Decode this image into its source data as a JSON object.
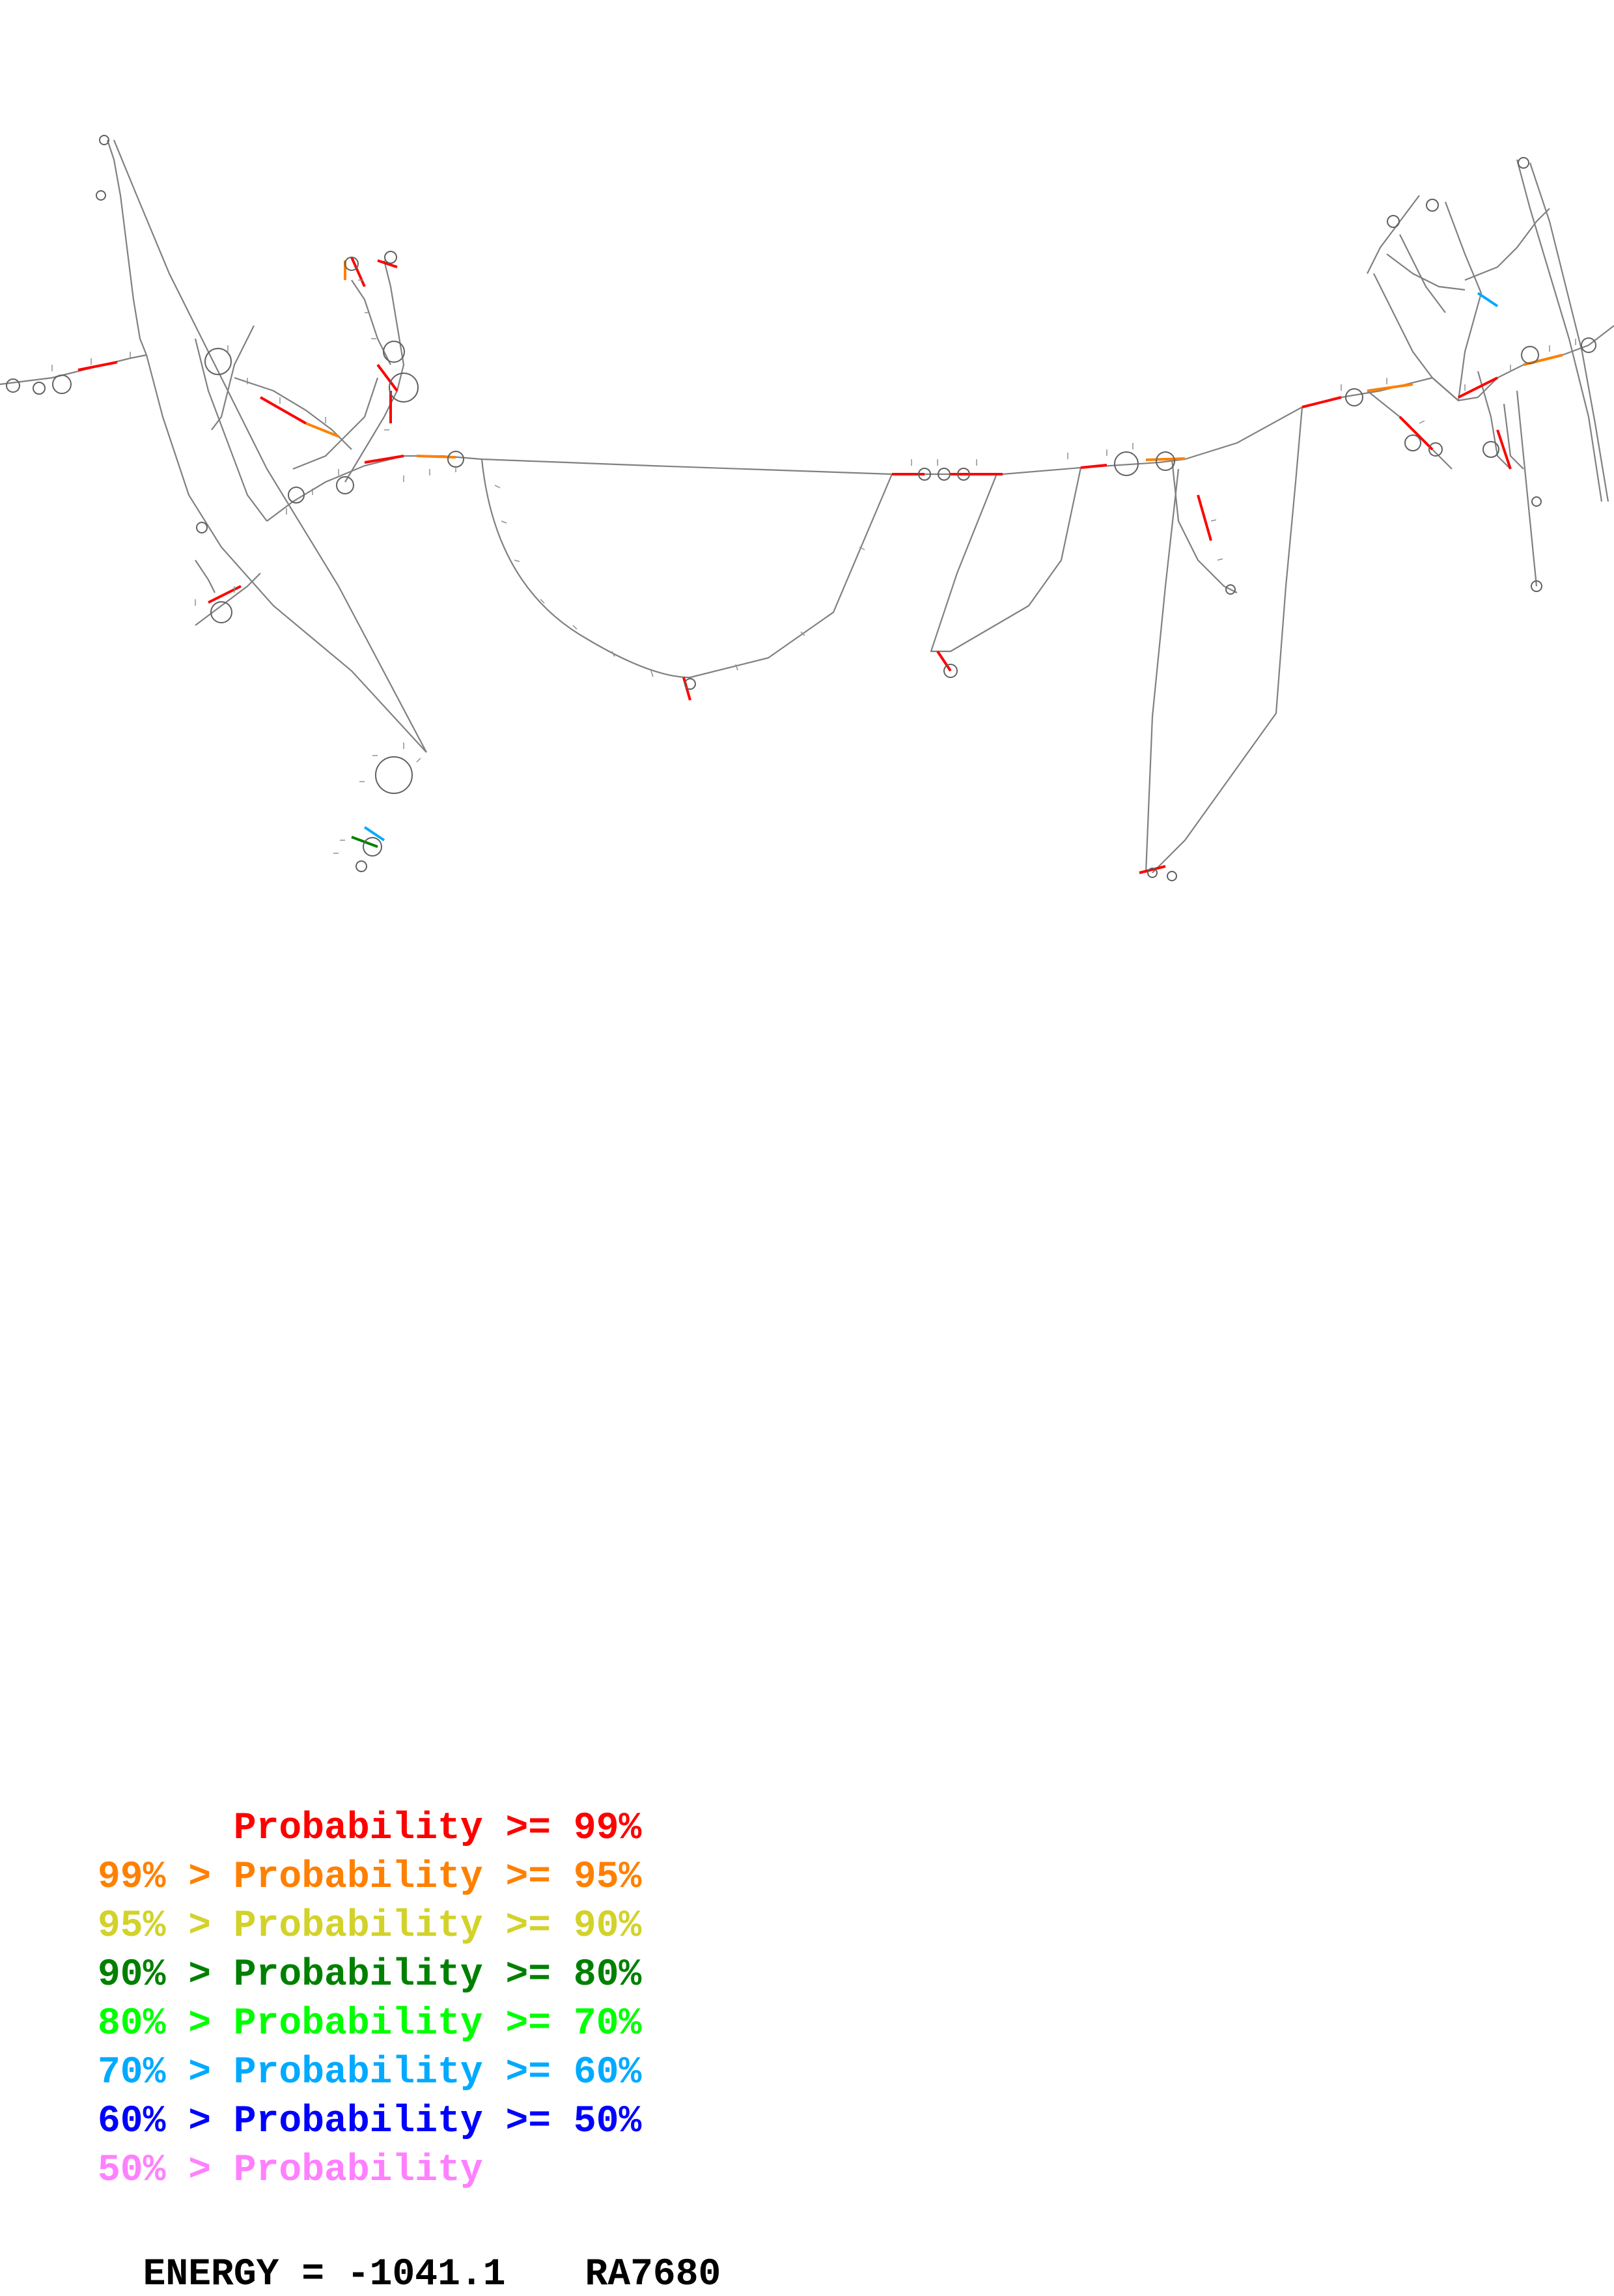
{
  "legend": [
    {
      "prefix": "",
      "label": "Probability",
      "suffix": " >= 99%",
      "color": "#ff0000"
    },
    {
      "prefix": "99% > ",
      "label": "Probability",
      "suffix": " >= 95%",
      "color": "#ff8000"
    },
    {
      "prefix": "95% > ",
      "label": "Probability",
      "suffix": " >= 90%",
      "color": "#d2d22a"
    },
    {
      "prefix": "90% > ",
      "label": "Probability",
      "suffix": " >= 80%",
      "color": "#008000"
    },
    {
      "prefix": "80% > ",
      "label": "Probability",
      "suffix": " >= 70%",
      "color": "#00ff00"
    },
    {
      "prefix": "70% > ",
      "label": "Probability",
      "suffix": " >= 60%",
      "color": "#00aaff"
    },
    {
      "prefix": "60% > ",
      "label": "Probability",
      "suffix": " >= 50%",
      "color": "#0000ff"
    },
    {
      "prefix": "50% > ",
      "label": "Probability",
      "suffix": "",
      "color": "#ff80ff"
    }
  ],
  "footer": {
    "energy_text": "ENERGY = -1041.1",
    "structure_id": "RA7680"
  },
  "colors": {
    "backbone": "#707070",
    "pair_high": "#ff0000",
    "pair_mid": "#ff8000",
    "pair_low": "#008000",
    "pair_cyan": "#00aaff"
  }
}
